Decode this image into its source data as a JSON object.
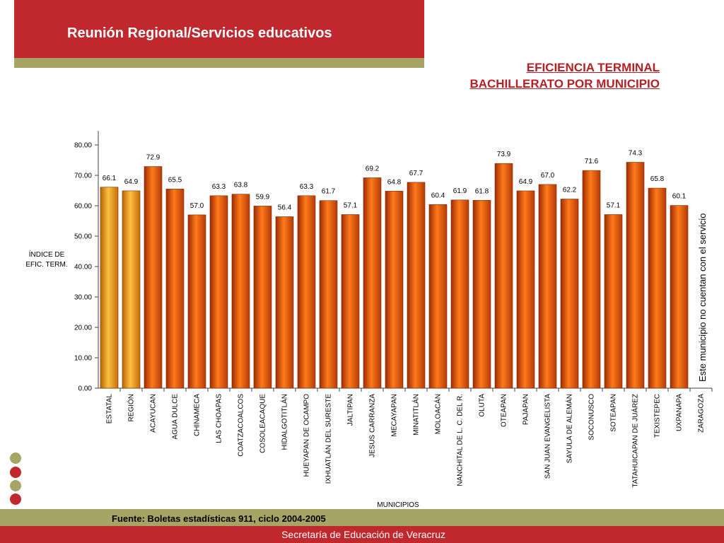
{
  "header": {
    "title": "Reunión Regional/Servicios educativos"
  },
  "chart_title": {
    "line1": "EFICIENCIA TERMINAL",
    "line2": "BACHILLERATO POR MUNICIPIO"
  },
  "chart_data": {
    "type": "bar",
    "ylabel_lines": [
      "ÍNDICE DE",
      "EFIC. TERM."
    ],
    "xlabel": "MUNICIPIOS",
    "ylim": [
      0,
      80
    ],
    "y_ticks": [
      "0.00",
      "10.00",
      "20.00",
      "30.00",
      "40.00",
      "50.00",
      "60.00",
      "70.00",
      "80.00"
    ],
    "categories": [
      "ESTATAL",
      "REGIÓN",
      "ACAYUCAN",
      "AGUA DULCE",
      "CHINAMECA",
      "LAS CHOAPAS",
      "COATZACOALCOS",
      "COSOLEACAQUE",
      "HIDALGOTITLÁN",
      "HUEYAPAN DE OCAMPO",
      "IXHUATLÁN DEL SURESTE",
      "JALTIPAN",
      "JESUS CARRANZA",
      "MECAYAPAN",
      "MINATITLÁN",
      "MOLOACÁN",
      "NANCHITAL DE L. C. DEL R.",
      "OLUTA",
      "OTEAPAN",
      "PAJAPAN",
      "SAN JUAN EVANGELISTA",
      "SAYULA DE ALEMÁN",
      "SOCONUSCO",
      "SOTEAPAN",
      "TATAHUICAPAN DE JUÁREZ",
      "TEXISTEPEC",
      "UXPANAPA",
      "ZARAGOZA"
    ],
    "values": [
      66.1,
      64.9,
      72.9,
      65.5,
      57.0,
      63.3,
      63.8,
      59.9,
      56.4,
      63.3,
      61.7,
      57.1,
      69.2,
      64.8,
      67.7,
      60.4,
      61.9,
      61.8,
      73.9,
      64.9,
      67.0,
      62.2,
      71.6,
      57.1,
      74.3,
      65.8,
      60.1,
      null
    ],
    "value_labels": [
      "66.1",
      "64.9",
      "72.9",
      "65.5",
      "57.0",
      "63.3",
      "63.8",
      "59.9",
      "56.4",
      "63.3",
      "61.7",
      "57.1",
      "69.2",
      "64.8",
      "67.7",
      "60.4",
      "61.9",
      "61.8",
      "73.9",
      "64.9",
      "67.0",
      "62.2",
      "71.6",
      "57.1",
      "74.3",
      "65.8",
      "60.1",
      ""
    ],
    "annotation": "Este municipio no cuentan con el servicio",
    "colors": {
      "reference_bars": "#f0a020",
      "municipio_bars": "#e85c0a"
    }
  },
  "source": "Fuente: Boletas estadísticas 911, ciclo 2004-2005",
  "footer": "Secretaría de Educación de Veracruz"
}
